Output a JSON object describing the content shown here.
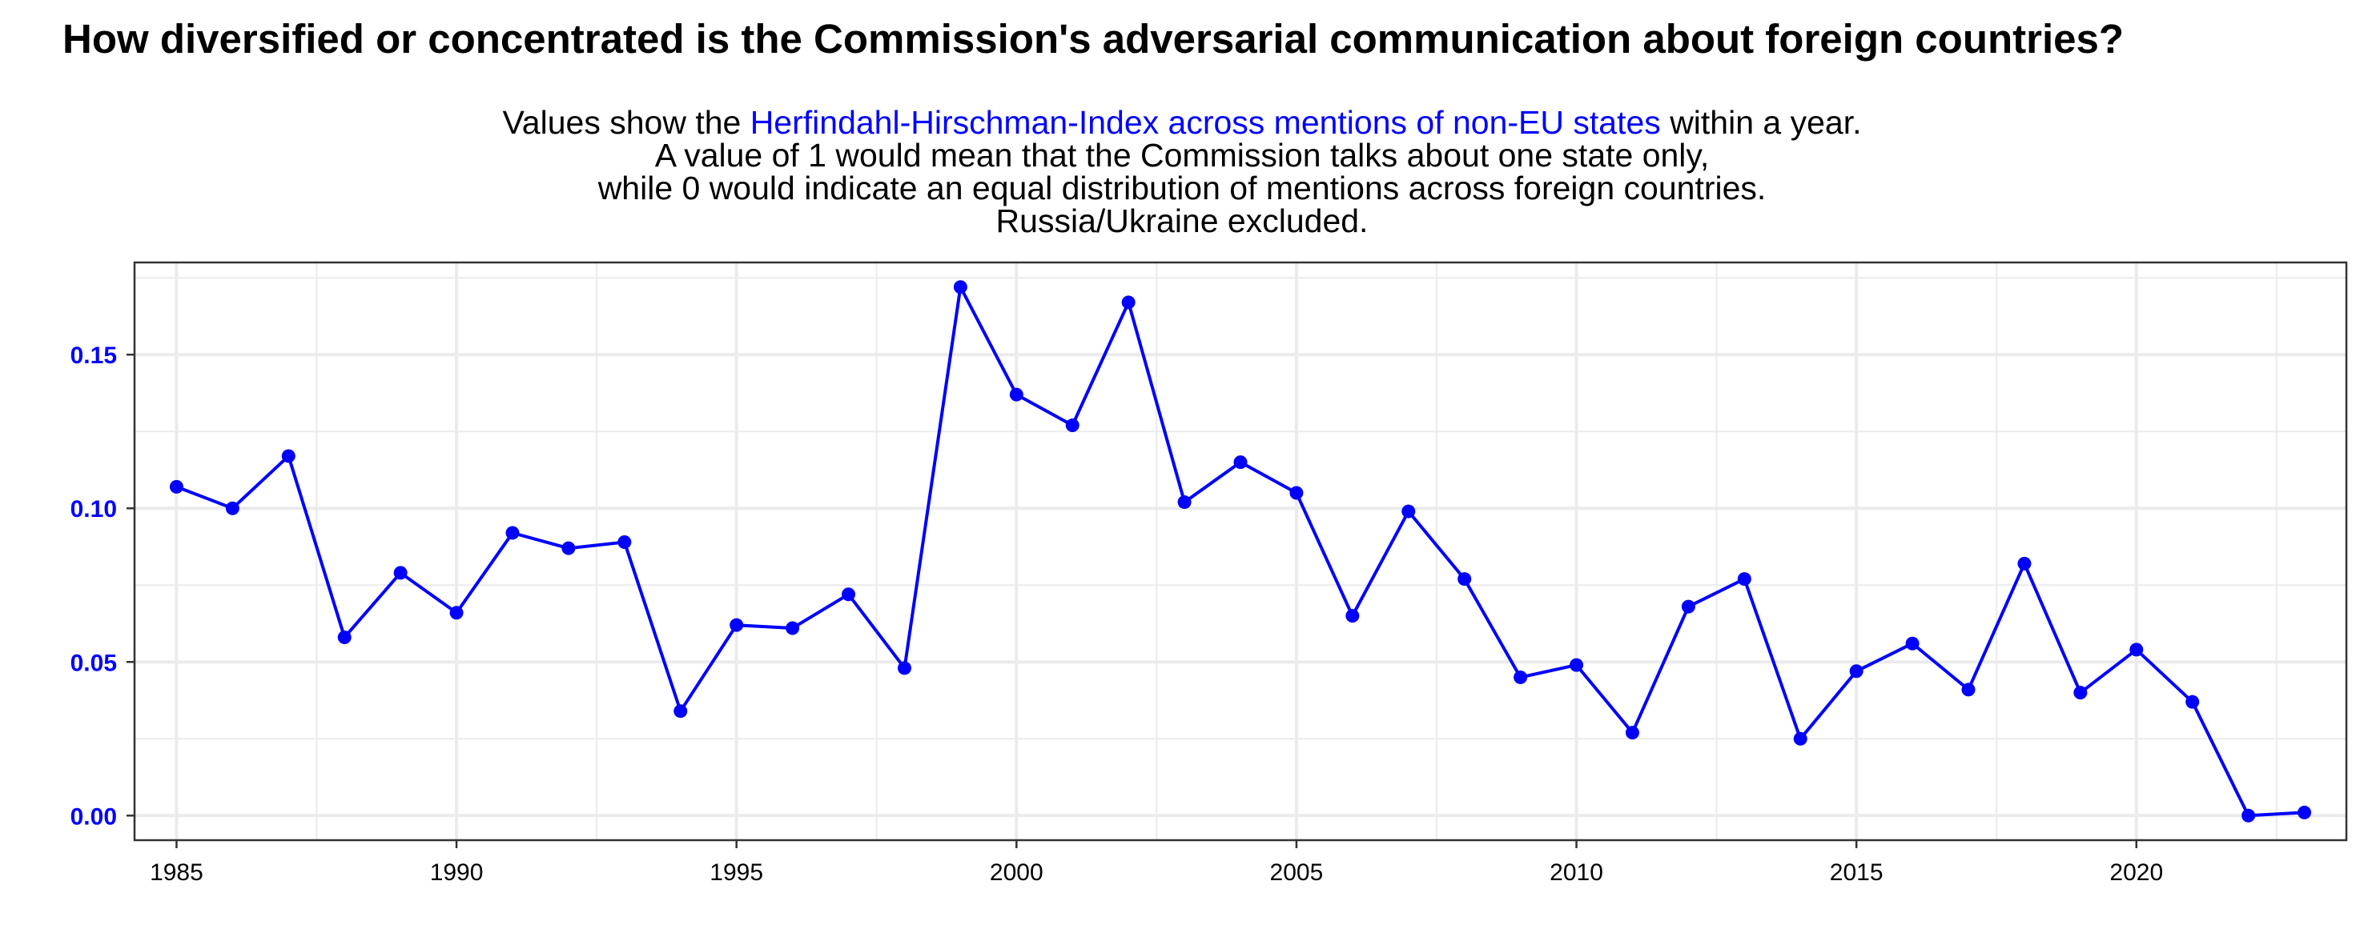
{
  "title": "How diversified or concentrated is the Commission's adversarial communication about foreign countries?",
  "subtitle": {
    "line1_pre": "Values show the ",
    "line1_highlight": "Herfindahl-Hirschman-Index across mentions of non-EU states",
    "line1_post": " within a year.",
    "line2": "A value of 1 would mean that the Commission talks about one state only,",
    "line3": "while 0 would indicate an equal distribution of mentions across foreign countries.",
    "line4": "Russia/Ukraine excluded."
  },
  "colors": {
    "series": "#0000ff",
    "highlight": "#0000ff",
    "grid": "#ebebeb",
    "panel_border": "#333333"
  },
  "chart_data": {
    "type": "line",
    "title": "How diversified or concentrated is the Commission's adversarial communication about foreign countries?",
    "xlabel": "",
    "ylabel": "",
    "xlim": [
      1984.25,
      2023.75
    ],
    "ylim": [
      -0.008,
      0.18
    ],
    "grid": true,
    "legend": "none",
    "x_ticks": [
      1985,
      1990,
      1995,
      2000,
      2005,
      2010,
      2015,
      2020
    ],
    "y_ticks": [
      0.0,
      0.05,
      0.1,
      0.15
    ],
    "y_tick_labels": [
      "0.00",
      "0.05",
      "0.10",
      "0.15"
    ],
    "x": [
      1985,
      1986,
      1987,
      1988,
      1989,
      1990,
      1991,
      1992,
      1993,
      1994,
      1995,
      1996,
      1997,
      1998,
      1999,
      2000,
      2001,
      2002,
      2003,
      2004,
      2005,
      2006,
      2007,
      2008,
      2009,
      2010,
      2011,
      2012,
      2013,
      2014,
      2015,
      2016,
      2017,
      2018,
      2019,
      2020,
      2021,
      2022,
      2023
    ],
    "series": [
      {
        "values": [
          0.107,
          0.1,
          0.117,
          0.058,
          0.079,
          0.066,
          0.092,
          0.087,
          0.089,
          0.034,
          0.062,
          0.061,
          0.072,
          0.048,
          0.172,
          0.137,
          0.127,
          0.167,
          0.102,
          0.115,
          0.105,
          0.065,
          0.099,
          0.077,
          0.045,
          0.049,
          0.027,
          0.068,
          0.077,
          0.025,
          0.047,
          0.056,
          0.041,
          0.082,
          0.04,
          0.054,
          0.037,
          0.0,
          0.001
        ]
      }
    ]
  }
}
